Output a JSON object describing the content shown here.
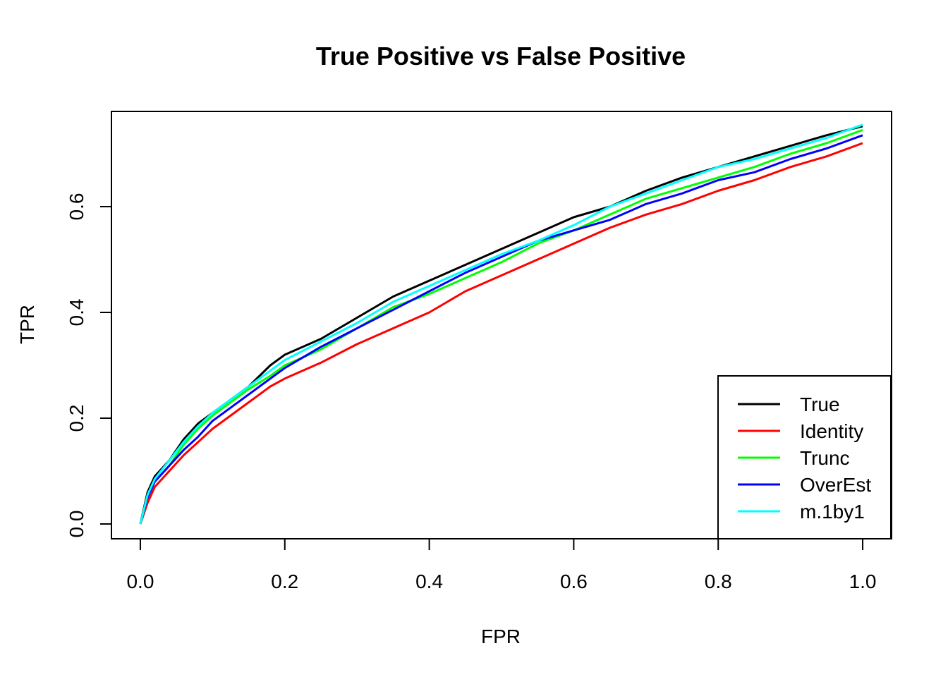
{
  "chart_data": {
    "type": "line",
    "title": "True Positive vs False Positive",
    "xlabel": "FPR",
    "ylabel": "TPR",
    "xlim": [
      -0.04,
      1.04
    ],
    "ylim": [
      -0.028,
      0.78
    ],
    "xticks": [
      0.0,
      0.2,
      0.4,
      0.6,
      0.8,
      1.0
    ],
    "xtick_labels": [
      "0.0",
      "0.2",
      "0.4",
      "0.6",
      "0.8",
      "1.0"
    ],
    "yticks": [
      0.0,
      0.2,
      0.4,
      0.6
    ],
    "ytick_labels": [
      "0.0",
      "0.2",
      "0.4",
      "0.6"
    ],
    "grid": false,
    "legend_position": "bottom-right",
    "x": [
      0.0,
      0.01,
      0.02,
      0.04,
      0.06,
      0.08,
      0.1,
      0.12,
      0.15,
      0.18,
      0.2,
      0.25,
      0.3,
      0.35,
      0.4,
      0.45,
      0.5,
      0.55,
      0.6,
      0.65,
      0.7,
      0.75,
      0.8,
      0.85,
      0.9,
      0.95,
      1.0
    ],
    "series": [
      {
        "name": "True",
        "color": "#000000",
        "values": [
          0.0,
          0.06,
          0.09,
          0.12,
          0.16,
          0.19,
          0.21,
          0.23,
          0.26,
          0.3,
          0.32,
          0.35,
          0.39,
          0.43,
          0.46,
          0.49,
          0.52,
          0.55,
          0.58,
          0.6,
          0.63,
          0.655,
          0.675,
          0.695,
          0.715,
          0.735,
          0.752
        ]
      },
      {
        "name": "Identity",
        "color": "#ff0000",
        "values": [
          0.0,
          0.04,
          0.07,
          0.1,
          0.13,
          0.155,
          0.18,
          0.2,
          0.23,
          0.26,
          0.275,
          0.305,
          0.34,
          0.37,
          0.4,
          0.44,
          0.47,
          0.5,
          0.53,
          0.56,
          0.585,
          0.605,
          0.63,
          0.65,
          0.675,
          0.695,
          0.72
        ]
      },
      {
        "name": "Trunc",
        "color": "#00ff00",
        "values": [
          0.0,
          0.05,
          0.08,
          0.11,
          0.15,
          0.18,
          0.205,
          0.225,
          0.255,
          0.28,
          0.3,
          0.33,
          0.37,
          0.41,
          0.435,
          0.465,
          0.495,
          0.53,
          0.555,
          0.585,
          0.615,
          0.635,
          0.655,
          0.675,
          0.7,
          0.72,
          0.745
        ]
      },
      {
        "name": "OverEst",
        "color": "#0000ff",
        "values": [
          0.0,
          0.05,
          0.08,
          0.11,
          0.14,
          0.165,
          0.195,
          0.215,
          0.245,
          0.275,
          0.295,
          0.335,
          0.37,
          0.405,
          0.44,
          0.475,
          0.505,
          0.535,
          0.555,
          0.575,
          0.605,
          0.625,
          0.65,
          0.665,
          0.69,
          0.71,
          0.735
        ]
      },
      {
        "name": "m.1by1",
        "color": "#00ffff",
        "values": [
          0.0,
          0.055,
          0.085,
          0.12,
          0.155,
          0.185,
          0.21,
          0.23,
          0.26,
          0.29,
          0.31,
          0.345,
          0.38,
          0.42,
          0.45,
          0.48,
          0.51,
          0.535,
          0.565,
          0.6,
          0.625,
          0.65,
          0.675,
          0.69,
          0.71,
          0.73,
          0.755
        ]
      }
    ]
  }
}
